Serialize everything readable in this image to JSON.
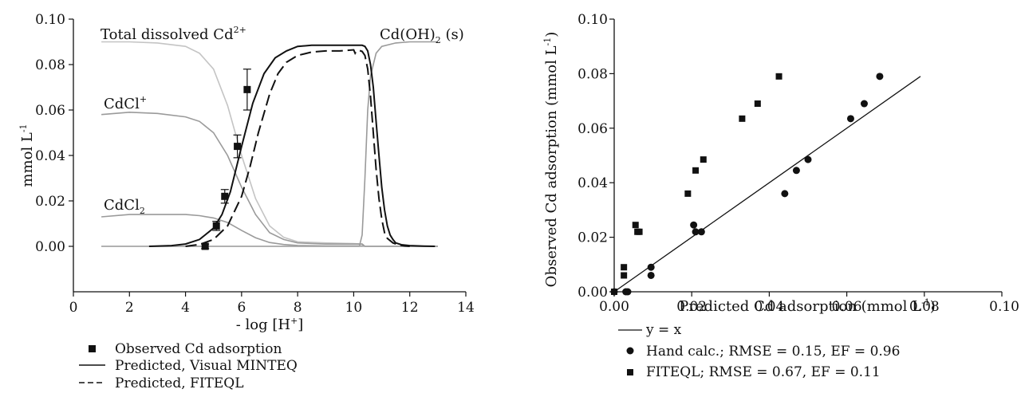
{
  "chart_data": [
    {
      "type": "line",
      "xlabel": "- log [H+]",
      "xlabel_parts": {
        "pre": "- log [H",
        "sup": "+",
        "post": "]"
      },
      "ylabel": "mmol L-1",
      "ylabel_parts": {
        "pre": "mmol L",
        "sup": "-1",
        "post": ""
      },
      "xlim": [
        0,
        14
      ],
      "ylim": [
        -0.02,
        0.1
      ],
      "xticks": [
        0,
        2,
        4,
        6,
        8,
        10,
        12,
        14
      ],
      "xtick_labels": [
        "0",
        "2",
        "4",
        "6",
        "8",
        "10",
        "12",
        "14"
      ],
      "yticks": [
        0,
        0.02,
        0.04,
        0.06,
        0.08,
        0.1
      ],
      "ytick_labels": [
        "0.00",
        "0.02",
        "0.04",
        "0.06",
        "0.08",
        "0.10"
      ],
      "annotations": [
        {
          "pre": "Total dissolved Cd",
          "sup": "2+",
          "sub": "",
          "post": ""
        },
        {
          "pre": "Cd(OH)",
          "sup": "",
          "sub": "2",
          "post": " (s)"
        },
        {
          "pre": "CdCl",
          "sup": "+",
          "sub": "",
          "post": ""
        },
        {
          "pre": "CdCl",
          "sup": "",
          "sub": "2",
          "post": ""
        }
      ],
      "observed": {
        "x": [
          4.7,
          5.1,
          5.4,
          5.85,
          6.2
        ],
        "y": [
          0.0,
          0.009,
          0.022,
          0.044,
          0.069
        ],
        "err": [
          0.001,
          0.002,
          0.003,
          0.005,
          0.009
        ]
      },
      "species_curves": [
        {
          "x": [
            1.0,
            2.0,
            3.0,
            4.0,
            4.5,
            5.0,
            5.5,
            6.0,
            6.5,
            7.0,
            7.5,
            8.0,
            9.0,
            10.0,
            10.3,
            10.4,
            11.0,
            12.0,
            13.0
          ],
          "y": [
            0.09,
            0.09,
            0.0895,
            0.088,
            0.085,
            0.078,
            0.062,
            0.04,
            0.021,
            0.009,
            0.004,
            0.002,
            0.0015,
            0.0012,
            0.001,
            0.0,
            0.0,
            0.0,
            0.0
          ]
        },
        {
          "x": [
            1.0,
            2.0,
            3.0,
            4.0,
            4.5,
            5.0,
            5.5,
            6.0,
            6.5,
            7.0,
            7.5,
            8.0,
            9.0,
            10.0,
            10.3,
            10.4,
            11.0,
            12.0,
            13.0
          ],
          "y": [
            0.058,
            0.059,
            0.0585,
            0.057,
            0.055,
            0.05,
            0.04,
            0.026,
            0.014,
            0.006,
            0.003,
            0.0015,
            0.001,
            0.001,
            0.001,
            0.0,
            0.0,
            0.0,
            0.0
          ]
        },
        {
          "x": [
            1.0,
            2.0,
            3.0,
            4.0,
            4.5,
            5.0,
            5.5,
            6.0,
            6.5,
            7.0,
            7.5,
            8.0,
            9.0,
            10.0,
            10.3,
            10.4,
            11.0,
            12.0,
            13.0
          ],
          "y": [
            0.013,
            0.014,
            0.014,
            0.014,
            0.0135,
            0.0125,
            0.0105,
            0.007,
            0.0038,
            0.0017,
            0.0008,
            0.0004,
            0.0002,
            0.0002,
            0.0002,
            0.0,
            0.0,
            0.0,
            0.0
          ]
        },
        {
          "x": [
            1.0,
            4.0,
            8.0,
            10.0,
            10.2,
            10.3,
            10.4,
            10.5,
            10.6,
            10.8,
            11.0,
            11.5,
            12.0,
            13.0
          ],
          "y": [
            0.0,
            0.0,
            0.0,
            0.0,
            0.0,
            0.005,
            0.03,
            0.06,
            0.075,
            0.085,
            0.088,
            0.0895,
            0.09,
            0.09
          ]
        },
        {
          "x": [
            1.0,
            4.0,
            6.0,
            8.0,
            10.0,
            10.2,
            10.4,
            12.0,
            13.0
          ],
          "y": [
            0.0,
            0.0,
            0.0,
            0.0,
            0.0,
            0.0,
            0.0,
            0.0,
            0.0
          ]
        }
      ],
      "series": [
        {
          "name": "Predicted, Visual MINTEQ",
          "style": "solid",
          "x": [
            2.7,
            3.5,
            4.0,
            4.5,
            5.0,
            5.3,
            5.6,
            6.0,
            6.4,
            6.8,
            7.2,
            7.6,
            8.0,
            8.5,
            9.0,
            9.5,
            10.0,
            10.3,
            10.4,
            10.5,
            10.6,
            10.7,
            10.8,
            10.9,
            11.0,
            11.1,
            11.2,
            11.3,
            11.4,
            11.5,
            11.7,
            12.0,
            12.5,
            12.9
          ],
          "y": [
            0.0,
            0.0003,
            0.001,
            0.003,
            0.008,
            0.014,
            0.024,
            0.044,
            0.063,
            0.076,
            0.083,
            0.086,
            0.088,
            0.0885,
            0.0885,
            0.0885,
            0.0885,
            0.0885,
            0.088,
            0.086,
            0.08,
            0.07,
            0.055,
            0.04,
            0.026,
            0.016,
            0.009,
            0.005,
            0.003,
            0.0015,
            0.0007,
            0.0003,
            0.0001,
            0.0
          ]
        },
        {
          "name": "Predicted, FITEQL",
          "style": "dashed",
          "x": [
            4.0,
            4.5,
            5.0,
            5.5,
            6.0,
            6.3,
            6.6,
            7.0,
            7.3,
            7.6,
            8.0,
            8.5,
            9.0,
            9.5,
            10.0,
            10.05,
            10.1,
            10.2,
            10.3,
            10.4,
            10.5,
            10.6,
            10.7,
            10.8,
            10.9,
            11.0,
            11.1,
            11.2,
            11.4,
            11.6,
            11.8,
            12.0
          ],
          "y": [
            0.0,
            0.0008,
            0.003,
            0.009,
            0.022,
            0.035,
            0.05,
            0.067,
            0.076,
            0.081,
            0.084,
            0.0855,
            0.086,
            0.086,
            0.0865,
            0.085,
            0.086,
            0.0862,
            0.0858,
            0.084,
            0.078,
            0.066,
            0.05,
            0.034,
            0.021,
            0.012,
            0.006,
            0.0035,
            0.0015,
            0.0006,
            0.0002,
            0.0
          ]
        }
      ],
      "legend": {
        "placement": "bottom-left",
        "entries": [
          "Observed Cd adsorption",
          "Predicted, Visual MINTEQ",
          "Predicted, FITEQL"
        ]
      }
    },
    {
      "type": "scatter",
      "xlabel": "Predicted Cd adsorption (mmol L-1)",
      "xlabel_parts": {
        "pre": "Predicted Cd adsorption (mmol L",
        "sup": "-1",
        "post": ")"
      },
      "ylabel": "Observed Cd adsorption (mmol L-1)",
      "ylabel_parts": {
        "pre": "Observed Cd adsorption (mmol L",
        "sup": "-1",
        "post": ")"
      },
      "xlim": [
        0,
        0.1
      ],
      "ylim": [
        0,
        0.1
      ],
      "xticks": [
        0,
        0.02,
        0.04,
        0.06,
        0.08,
        0.1
      ],
      "xtick_labels": [
        "0.00",
        "0.02",
        "0.04",
        "0.06",
        "0.08",
        "0.10"
      ],
      "yticks": [
        0,
        0.02,
        0.04,
        0.06,
        0.08,
        0.1
      ],
      "ytick_labels": [
        "0.00",
        "0.02",
        "0.04",
        "0.06",
        "0.08",
        "0.10"
      ],
      "identity_line": {
        "name": "y = x",
        "x": [
          0,
          0.079
        ],
        "y": [
          0,
          0.079
        ]
      },
      "series": [
        {
          "name": "Hand calc.; RMSE = 0.15, EF = 0.96",
          "marker": "circle",
          "x": [
            0.0,
            0.003,
            0.0035,
            0.0095,
            0.0095,
            0.0205,
            0.021,
            0.0225,
            0.044,
            0.047,
            0.05,
            0.061,
            0.0645,
            0.0685
          ],
          "y": [
            0.0,
            0.0,
            0.0,
            0.006,
            0.009,
            0.0245,
            0.022,
            0.022,
            0.036,
            0.0445,
            0.0485,
            0.0635,
            0.069,
            0.079
          ]
        },
        {
          "name": "FITEQL; RMSE = 0.67, EF = 0.11",
          "marker": "square",
          "x": [
            0.0,
            0.0025,
            0.0025,
            0.0055,
            0.006,
            0.0065,
            0.019,
            0.021,
            0.023,
            0.033,
            0.037,
            0.0425
          ],
          "y": [
            0.0,
            0.006,
            0.009,
            0.0245,
            0.022,
            0.022,
            0.036,
            0.0445,
            0.0485,
            0.0635,
            0.069,
            0.079
          ]
        }
      ],
      "legend": {
        "placement": "bottom-left",
        "entries": [
          "y = x",
          "Hand calc.; RMSE = 0.15, EF = 0.96",
          "FITEQL; RMSE = 0.67, EF = 0.11"
        ]
      }
    }
  ],
  "colors": {
    "axis": "#111111",
    "observed": "#111111",
    "visual_minteq": "#111111",
    "fiteql": "#111111",
    "total_dissolved": "#c4c4c4",
    "cdcl_plus": "#9a9a9a",
    "cdcl2": "#9a9a9a",
    "cdoh2": "#9a9a9a",
    "cd_baseline": "#a8a8a8"
  }
}
